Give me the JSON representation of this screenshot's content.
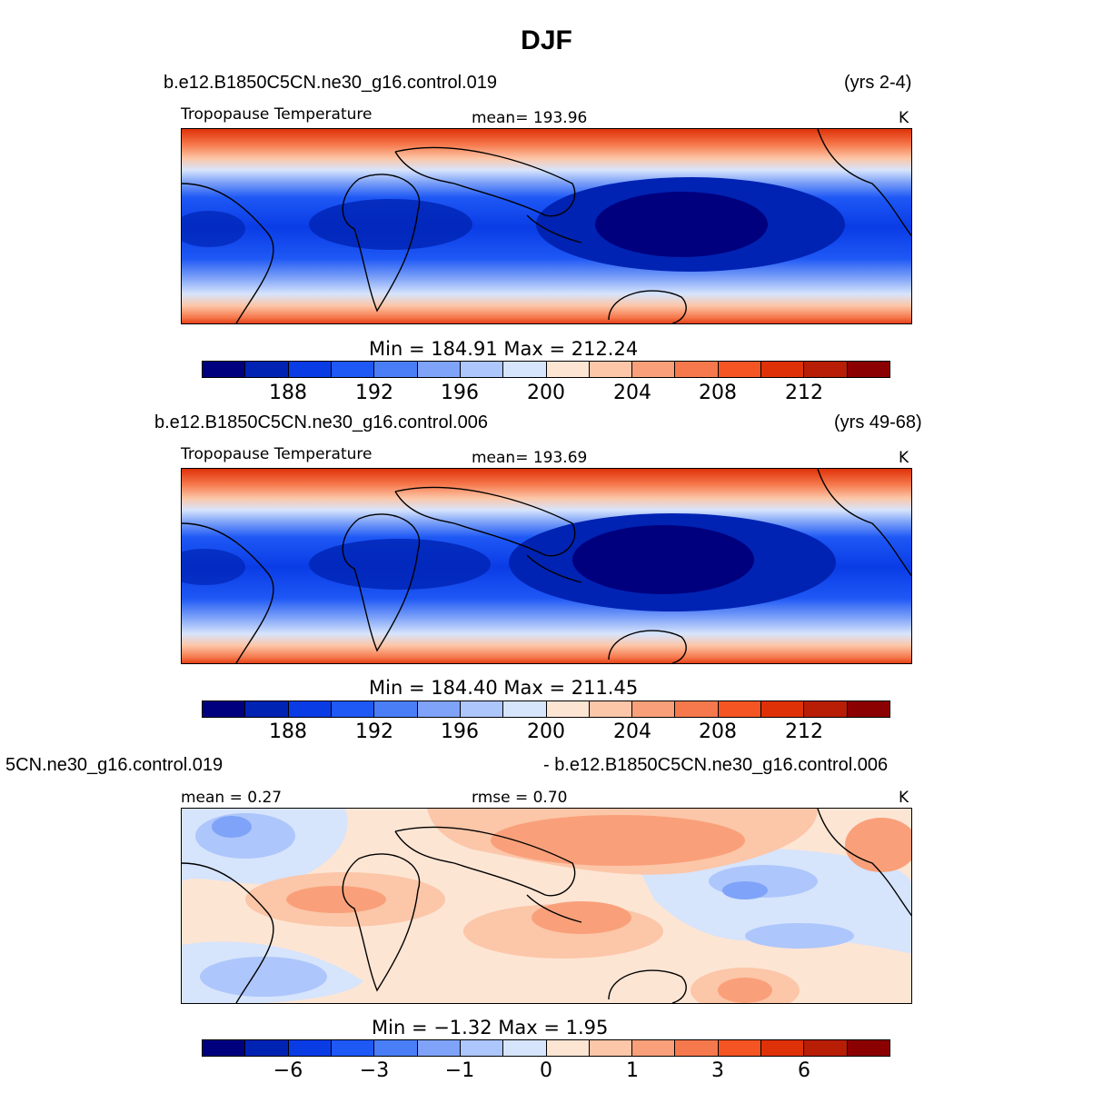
{
  "figure_title": "DJF",
  "chart_data": [
    {
      "type": "heatmap",
      "case_name": "b.e12.B1850C5CN.ne30_g16.control.019",
      "years": "(yrs 2-4)",
      "variable": "Tropopause Temperature",
      "units": "K",
      "mean_label": "mean= 193.96",
      "stats_label": "Min =  184.91  Max =  212.24",
      "min": 184.91,
      "max": 212.24,
      "mean": 193.96,
      "colorbar_ticks": [
        "188",
        "192",
        "196",
        "200",
        "204",
        "208",
        "212"
      ]
    },
    {
      "type": "heatmap",
      "case_name": "b.e12.B1850C5CN.ne30_g16.control.006",
      "years": "(yrs 49-68)",
      "variable": "Tropopause Temperature",
      "units": "K",
      "mean_label": "mean= 193.69",
      "stats_label": "Min =  184.40  Max =  211.45",
      "min": 184.4,
      "max": 211.45,
      "mean": 193.69,
      "colorbar_ticks": [
        "188",
        "192",
        "196",
        "200",
        "204",
        "208",
        "212"
      ]
    },
    {
      "type": "heatmap",
      "case_left": "5CN.ne30_g16.control.019",
      "case_right": "- b.e12.B1850C5CN.ne30_g16.control.006",
      "units": "K",
      "mean_label": "mean =    0.27",
      "rmse_label": "rmse =    0.70",
      "stats_label": "Min =   −1.32  Max =     1.95",
      "min": -1.32,
      "max": 1.95,
      "mean": 0.27,
      "rmse": 0.7,
      "colorbar_ticks": [
        "−6",
        "−3",
        "−1",
        "0",
        "1",
        "3",
        "6"
      ]
    }
  ],
  "colors": [
    "#00007f",
    "#0023b3",
    "#0a3ce6",
    "#1e58f5",
    "#4a7ef7",
    "#7fa3f8",
    "#adc6fb",
    "#d6e4fc",
    "#fde5d4",
    "#fcc6a8",
    "#f9a07a",
    "#f6794d",
    "#f45523",
    "#df3108",
    "#b71e05",
    "#8b0000"
  ]
}
